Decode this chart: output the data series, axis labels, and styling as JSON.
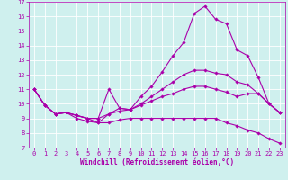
{
  "background_color": "#cff0ee",
  "grid_color": "#ffffff",
  "line_color": "#aa00aa",
  "xlabel": "Windchill (Refroidissement éolien,°C)",
  "xlim": [
    -0.5,
    23.5
  ],
  "ylim": [
    7,
    17
  ],
  "yticks": [
    7,
    8,
    9,
    10,
    11,
    12,
    13,
    14,
    15,
    16,
    17
  ],
  "xticks": [
    0,
    1,
    2,
    3,
    4,
    5,
    6,
    7,
    8,
    9,
    10,
    11,
    12,
    13,
    14,
    15,
    16,
    17,
    18,
    19,
    20,
    21,
    22,
    23
  ],
  "lines": [
    {
      "x": [
        0,
        1,
        2,
        3,
        4,
        5,
        6,
        7,
        8,
        9,
        10,
        11,
        12,
        13,
        14,
        15,
        16,
        17,
        18,
        19,
        20,
        21,
        22,
        23
      ],
      "y": [
        11.0,
        9.9,
        9.3,
        9.4,
        9.0,
        8.8,
        8.7,
        9.3,
        9.7,
        9.6,
        10.5,
        11.2,
        12.2,
        13.3,
        14.2,
        16.2,
        16.7,
        15.8,
        15.5,
        13.7,
        13.3,
        11.8,
        10.0,
        9.4
      ]
    },
    {
      "x": [
        0,
        1,
        2,
        3,
        4,
        5,
        6,
        7,
        8,
        9,
        10,
        11,
        12,
        13,
        14,
        15,
        16,
        17,
        18,
        19,
        20,
        21,
        22,
        23
      ],
      "y": [
        11.0,
        9.9,
        9.3,
        9.4,
        9.2,
        9.0,
        9.0,
        11.0,
        9.7,
        9.6,
        10.0,
        10.5,
        11.0,
        11.5,
        12.0,
        12.3,
        12.3,
        12.1,
        12.0,
        11.5,
        11.3,
        10.7,
        10.0,
        9.4
      ]
    },
    {
      "x": [
        0,
        1,
        2,
        3,
        4,
        5,
        6,
        7,
        8,
        9,
        10,
        11,
        12,
        13,
        14,
        15,
        16,
        17,
        18,
        19,
        20,
        21,
        22,
        23
      ],
      "y": [
        11.0,
        9.9,
        9.3,
        9.4,
        9.2,
        9.0,
        9.0,
        9.3,
        9.5,
        9.6,
        9.9,
        10.2,
        10.5,
        10.7,
        11.0,
        11.2,
        11.2,
        11.0,
        10.8,
        10.5,
        10.7,
        10.7,
        10.0,
        9.4
      ]
    },
    {
      "x": [
        0,
        1,
        2,
        3,
        4,
        5,
        6,
        7,
        8,
        9,
        10,
        11,
        12,
        13,
        14,
        15,
        16,
        17,
        18,
        19,
        20,
        21,
        22,
        23
      ],
      "y": [
        11.0,
        9.9,
        9.3,
        9.4,
        9.2,
        9.0,
        8.7,
        8.7,
        8.9,
        9.0,
        9.0,
        9.0,
        9.0,
        9.0,
        9.0,
        9.0,
        9.0,
        9.0,
        8.7,
        8.5,
        8.2,
        8.0,
        7.6,
        7.3
      ]
    }
  ],
  "marker": "D",
  "marker_size": 1.8,
  "line_width": 0.8,
  "xlabel_font_size": 5.5,
  "tick_font_size": 5.0
}
